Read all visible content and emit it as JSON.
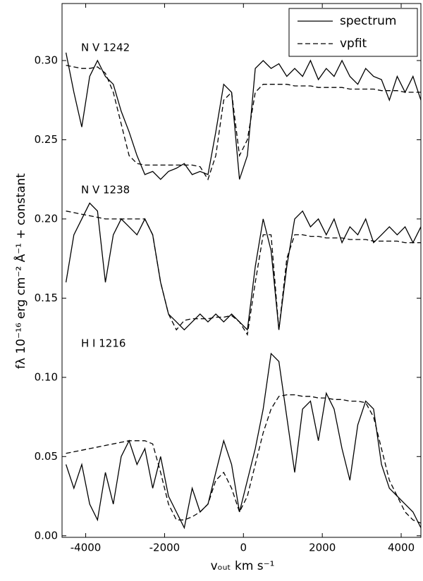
{
  "chart_data": {
    "type": "line",
    "xlabel": "vₒᵤₜ km s⁻¹",
    "ylabel": "fλ 10⁻¹⁶ erg cm⁻² Å⁻¹ + constant",
    "xlim": [
      -4600,
      4500
    ],
    "ylim": [
      -0.001,
      0.336
    ],
    "xticks": [
      -4000,
      -2000,
      0,
      2000,
      4000
    ],
    "yticks": [
      {
        "value": 0,
        "label": "0.00"
      },
      {
        "value": 0.05,
        "label": "0.05"
      },
      {
        "value": 0.1,
        "label": "0.10"
      },
      {
        "value": 0.15,
        "label": "0.15"
      },
      {
        "value": 0.2,
        "label": "0.20"
      },
      {
        "value": 0.25,
        "label": "0.25"
      },
      {
        "value": 0.3,
        "label": "0.30"
      }
    ],
    "legend_position": "upper right",
    "color": "#000000",
    "legend": [
      {
        "name": "spectrum",
        "line_style": "solid"
      },
      {
        "name": "vpfit",
        "line_style": "dashed"
      }
    ],
    "x": [
      -4500,
      -4300,
      -4100,
      -3900,
      -3700,
      -3500,
      -3300,
      -3100,
      -2900,
      -2700,
      -2500,
      -2300,
      -2100,
      -1900,
      -1700,
      -1500,
      -1300,
      -1100,
      -900,
      -700,
      -500,
      -300,
      -100,
      100,
      300,
      500,
      700,
      900,
      1100,
      1300,
      1500,
      1700,
      1900,
      2100,
      2300,
      2500,
      2700,
      2900,
      3100,
      3300,
      3500,
      3700,
      3900,
      4100,
      4300,
      4500
    ],
    "groups": [
      {
        "label": "N V 1242",
        "lines": [
          [
            0.305,
            0.28,
            0.258,
            0.29,
            0.3,
            0.29,
            0.285,
            0.268,
            0.255,
            0.24,
            0.228,
            0.23,
            0.225,
            0.23,
            0.232,
            0.235,
            0.228,
            0.23,
            0.228,
            0.255,
            0.285,
            0.28,
            0.225,
            0.24,
            0.295,
            0.3,
            0.295,
            0.298,
            0.29,
            0.295,
            0.29,
            0.3,
            0.288,
            0.295,
            0.29,
            0.3,
            0.29,
            0.285,
            0.295,
            0.29,
            0.288,
            0.275,
            0.29,
            0.28,
            0.29,
            0.275
          ],
          [
            0.297,
            0.296,
            0.295,
            0.295,
            0.296,
            0.292,
            0.28,
            0.26,
            0.24,
            0.235,
            0.234,
            0.234,
            0.234,
            0.234,
            0.234,
            0.234,
            0.234,
            0.233,
            0.225,
            0.24,
            0.275,
            0.28,
            0.24,
            0.25,
            0.28,
            0.285,
            0.285,
            0.285,
            0.285,
            0.284,
            0.284,
            0.284,
            0.283,
            0.283,
            0.283,
            0.283,
            0.282,
            0.282,
            0.282,
            0.282,
            0.281,
            0.281,
            0.281,
            0.28,
            0.28,
            0.28
          ]
        ]
      },
      {
        "label": "N V 1238",
        "lines": [
          [
            0.16,
            0.19,
            0.2,
            0.21,
            0.205,
            0.16,
            0.19,
            0.2,
            0.195,
            0.19,
            0.2,
            0.19,
            0.16,
            0.14,
            0.135,
            0.13,
            0.135,
            0.14,
            0.135,
            0.14,
            0.135,
            0.14,
            0.135,
            0.13,
            0.17,
            0.2,
            0.18,
            0.13,
            0.17,
            0.2,
            0.205,
            0.195,
            0.2,
            0.19,
            0.2,
            0.185,
            0.195,
            0.19,
            0.2,
            0.185,
            0.19,
            0.195,
            0.19,
            0.195,
            0.185,
            0.195
          ],
          [
            0.205,
            0.204,
            0.203,
            0.202,
            0.201,
            0.2,
            0.2,
            0.2,
            0.2,
            0.2,
            0.2,
            0.19,
            0.16,
            0.14,
            0.13,
            0.136,
            0.137,
            0.137,
            0.137,
            0.138,
            0.138,
            0.139,
            0.135,
            0.127,
            0.16,
            0.19,
            0.19,
            0.13,
            0.175,
            0.19,
            0.19,
            0.189,
            0.189,
            0.188,
            0.188,
            0.188,
            0.187,
            0.187,
            0.187,
            0.186,
            0.186,
            0.186,
            0.186,
            0.185,
            0.185,
            0.185
          ]
        ]
      },
      {
        "label": "H I 1216",
        "lines": [
          [
            0.045,
            0.03,
            0.045,
            0.02,
            0.01,
            0.04,
            0.02,
            0.05,
            0.06,
            0.045,
            0.055,
            0.03,
            0.05,
            0.025,
            0.015,
            0.005,
            0.03,
            0.015,
            0.02,
            0.04,
            0.06,
            0.045,
            0.015,
            0.035,
            0.055,
            0.08,
            0.115,
            0.11,
            0.075,
            0.04,
            0.08,
            0.085,
            0.06,
            0.09,
            0.08,
            0.055,
            0.035,
            0.07,
            0.085,
            0.08,
            0.045,
            0.03,
            0.025,
            0.02,
            0.015,
            0.005
          ],
          [
            0.052,
            0.053,
            0.054,
            0.055,
            0.056,
            0.057,
            0.058,
            0.059,
            0.06,
            0.06,
            0.06,
            0.058,
            0.04,
            0.02,
            0.01,
            0.01,
            0.012,
            0.015,
            0.02,
            0.035,
            0.04,
            0.03,
            0.015,
            0.025,
            0.045,
            0.065,
            0.08,
            0.088,
            0.089,
            0.089,
            0.088,
            0.088,
            0.087,
            0.087,
            0.086,
            0.086,
            0.085,
            0.085,
            0.084,
            0.075,
            0.055,
            0.035,
            0.025,
            0.015,
            0.01,
            0.008
          ]
        ]
      }
    ]
  }
}
